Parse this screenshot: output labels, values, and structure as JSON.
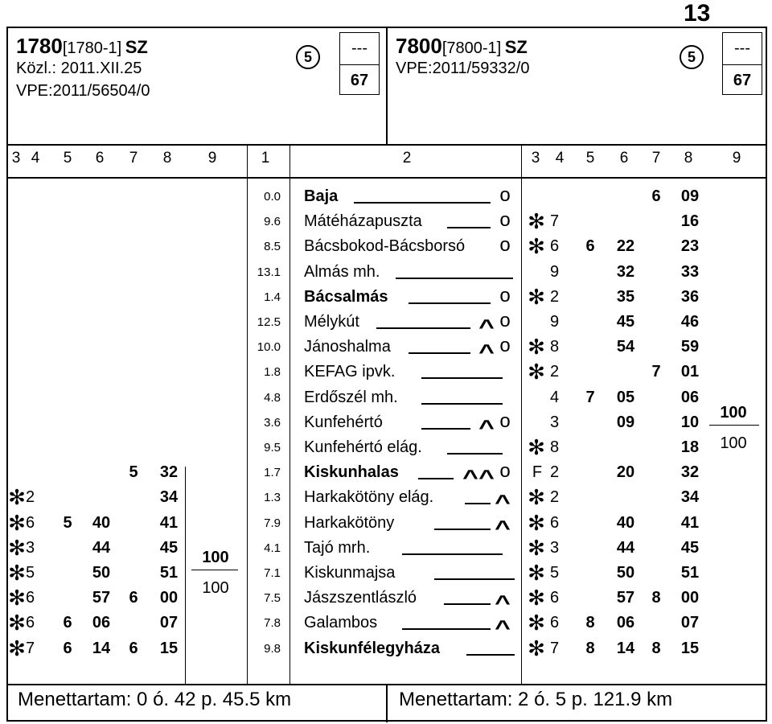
{
  "page_number": "13",
  "left_header": {
    "train_no": "1780",
    "train_ref": "[1780-1]",
    "train_type": "SZ",
    "announcement": "Közl.: 2011.XII.25",
    "vpe": "VPE:2011/56504/0",
    "circle": "5",
    "box_top": "---",
    "box_bottom": "67"
  },
  "right_header": {
    "train_no": "7800",
    "train_ref": "[7800-1]",
    "train_type": "SZ",
    "vpe": "VPE:2011/59332/0",
    "circle": "5",
    "box_top": "---",
    "box_bottom": "67"
  },
  "column_headers": {
    "left": [
      "3",
      "4",
      "5",
      "6",
      "7",
      "8",
      "9"
    ],
    "km": "1",
    "station": "2",
    "right": [
      "3",
      "4",
      "5",
      "6",
      "7",
      "8",
      "9"
    ]
  },
  "rows": [
    {
      "km": "0.0",
      "station": "Baja",
      "bold": true,
      "sig": "o",
      "lead": [
        440,
        610
      ],
      "L": {},
      "R": {
        "c7": "6",
        "c8": "09"
      }
    },
    {
      "km": "9.6",
      "station": "Mátéházapuszta",
      "bold": false,
      "sig": "o",
      "lead": [
        556,
        610
      ],
      "L": {},
      "R": {
        "c3s": "✻",
        "c4": "7",
        "c8": "16"
      }
    },
    {
      "km": "8.5",
      "station": "Bácsbokod-Bácsborsó",
      "bold": false,
      "sig": "o",
      "lead": null,
      "L": {},
      "R": {
        "c3s": "✻",
        "c4": "6",
        "c5": "6",
        "c6": "22",
        "c8": "23"
      }
    },
    {
      "km": "13.1",
      "station": "Almás mh.",
      "bold": false,
      "sig": "",
      "lead": [
        492,
        638
      ],
      "L": {},
      "R": {
        "c4": "9",
        "c6": "32",
        "c8": "33"
      }
    },
    {
      "km": "1.4",
      "station": "Bácsalmás",
      "bold": true,
      "sig": "o",
      "lead": [
        508,
        610
      ],
      "L": {},
      "R": {
        "c3s": "✻",
        "c4": "2",
        "c6": "35",
        "c8": "36"
      }
    },
    {
      "km": "12.5",
      "station": "Mélykút",
      "bold": false,
      "sig": "^o",
      "lead": [
        468,
        585
      ],
      "L": {},
      "R": {
        "c4": "9",
        "c6": "45",
        "c8": "46"
      }
    },
    {
      "km": "10.0",
      "station": "Jánoshalma",
      "bold": false,
      "sig": "^o",
      "lead": [
        508,
        585
      ],
      "L": {},
      "R": {
        "c3s": "✻",
        "c4": "8",
        "c6": "54",
        "c8": "59"
      }
    },
    {
      "km": "1.8",
      "station": "KEFAG ipvk.",
      "bold": false,
      "sig": "",
      "lead": [
        524,
        625
      ],
      "L": {},
      "R": {
        "c3s": "✻",
        "c4": "2",
        "c7": "7",
        "c8": "01"
      }
    },
    {
      "km": "4.8",
      "station": "Erdőszél mh.",
      "bold": false,
      "sig": "",
      "lead": [
        524,
        625
      ],
      "L": {},
      "R": {
        "c4": "4",
        "c5": "7",
        "c6": "05",
        "c8": "06"
      }
    },
    {
      "km": "3.6",
      "station": "Kunfehértó",
      "bold": false,
      "sig": "^o",
      "lead": [
        524,
        585
      ],
      "L": {},
      "R": {
        "c4": "3",
        "c6": "09",
        "c8": "10"
      }
    },
    {
      "km": "9.5",
      "station": "Kunfehértó elág.",
      "bold": false,
      "sig": "",
      "lead": [
        556,
        625
      ],
      "L": {},
      "R": {
        "c3s": "✻",
        "c4": "8",
        "c8": "18"
      }
    },
    {
      "km": "1.7",
      "station": "Kiskunhalas",
      "bold": true,
      "sig": "^^o",
      "lead": [
        520,
        564
      ],
      "L": {
        "c7": "5",
        "c8": "32"
      },
      "R": {
        "c3f": "F",
        "c4": "2",
        "c6": "20",
        "c8": "32"
      }
    },
    {
      "km": "1.3",
      "station": "Harkakötöny elág.",
      "bold": false,
      "sig": "^",
      "lead": [
        578,
        610
      ],
      "L": {
        "c3s": "✻",
        "c4": "2",
        "c8": "34"
      },
      "R": {
        "c3s": "✻",
        "c4": "2",
        "c8": "34"
      }
    },
    {
      "km": "7.9",
      "station": "Harkakötöny",
      "bold": false,
      "sig": "^",
      "lead": [
        540,
        610
      ],
      "L": {
        "c3s": "✻",
        "c4": "6",
        "c5": "5",
        "c6": "40",
        "c8": "41"
      },
      "R": {
        "c3s": "✻",
        "c4": "6",
        "c6": "40",
        "c8": "41"
      }
    },
    {
      "km": "4.1",
      "station": "Tajó mrh.",
      "bold": false,
      "sig": "",
      "lead": [
        500,
        625
      ],
      "L": {
        "c3s": "✻",
        "c4": "3",
        "c6": "44",
        "c8": "45"
      },
      "R": {
        "c3s": "✻",
        "c4": "3",
        "c6": "44",
        "c8": "45"
      }
    },
    {
      "km": "7.1",
      "station": "Kiskunmajsa",
      "bold": false,
      "sig": "",
      "lead": [
        540,
        640
      ],
      "L": {
        "c3s": "✻",
        "c4": "5",
        "c6": "50",
        "c8": "51"
      },
      "R": {
        "c3s": "✻",
        "c4": "5",
        "c6": "50",
        "c8": "51"
      }
    },
    {
      "km": "7.5",
      "station": "Jászszentlászló",
      "bold": false,
      "sig": "^",
      "lead": [
        552,
        610
      ],
      "L": {
        "c3s": "✻",
        "c4": "6",
        "c6": "57",
        "c7": "6",
        "c8": "00"
      },
      "R": {
        "c3s": "✻",
        "c4": "6",
        "c6": "57",
        "c7": "8",
        "c8": "00"
      }
    },
    {
      "km": "7.8",
      "station": "Galambos",
      "bold": false,
      "sig": "^",
      "lead": [
        500,
        610
      ],
      "L": {
        "c3s": "✻",
        "c4": "6",
        "c5": "6",
        "c6": "06",
        "c8": "07"
      },
      "R": {
        "c3s": "✻",
        "c4": "6",
        "c5": "8",
        "c6": "06",
        "c8": "07"
      }
    },
    {
      "km": "9.8",
      "station": "Kiskunfélegyháza",
      "bold": true,
      "sig": "",
      "lead": [
        580,
        640
      ],
      "L": {
        "c3s": "✻",
        "c4": "7",
        "c5": "6",
        "c6": "14",
        "c7": "6",
        "c8": "15"
      },
      "R": {
        "c3s": "✻",
        "c4": "7",
        "c5": "8",
        "c6": "14",
        "c7": "8",
        "c8": "15"
      }
    }
  ],
  "left_speed": {
    "top": "100",
    "bottom": "100"
  },
  "right_speed": {
    "top": "100",
    "bottom": "100"
  },
  "summary_left": "Menettartam: 0 ó. 42 p. 45.5 km",
  "summary_right": "Menettartam: 2 ó. 5 p. 121.9 km"
}
